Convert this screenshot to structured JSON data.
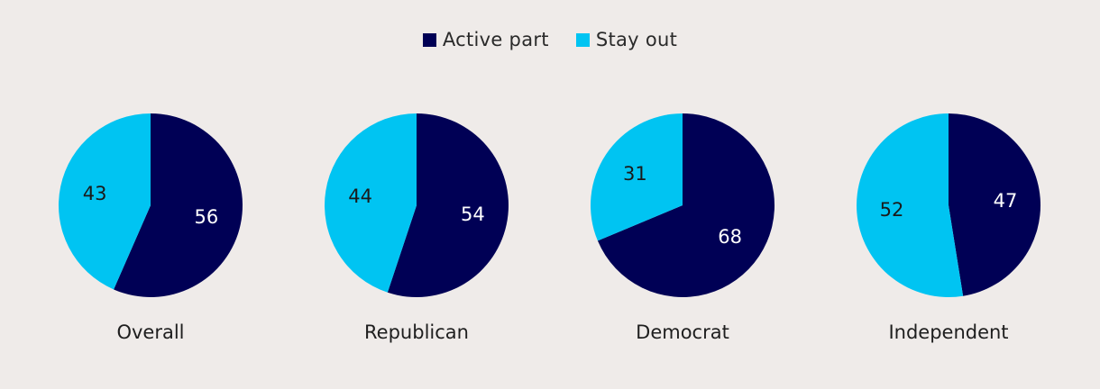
{
  "chart_data": {
    "type": "pie",
    "legend": {
      "position": "top-center",
      "entries": [
        {
          "name": "Active part",
          "color": "#000055"
        },
        {
          "name": "Stay out",
          "color": "#00c4f2"
        }
      ]
    },
    "series_names": [
      "Active part",
      "Stay out"
    ],
    "pies": [
      {
        "category": "Overall",
        "values": [
          56,
          43
        ]
      },
      {
        "category": "Republican",
        "values": [
          54,
          44
        ]
      },
      {
        "category": "Democrat",
        "values": [
          68,
          31
        ]
      },
      {
        "category": "Independent",
        "values": [
          47,
          52
        ]
      }
    ],
    "label_colors": [
      "#ffffff",
      "#1a1a1a"
    ]
  }
}
